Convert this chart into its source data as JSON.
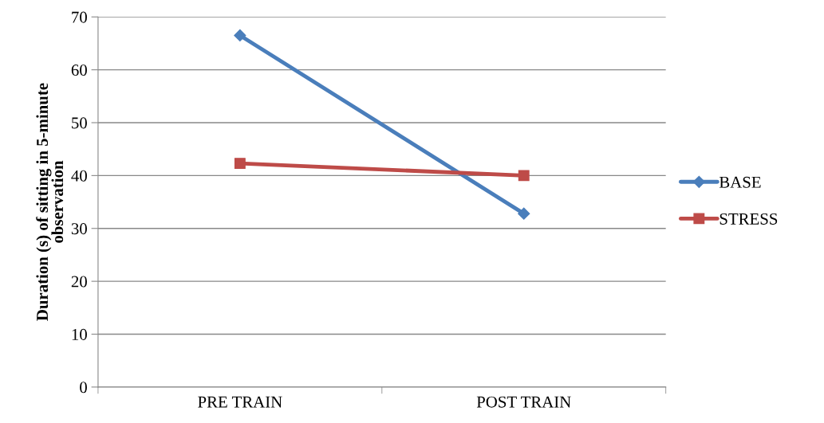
{
  "chart_data": {
    "type": "line",
    "ylabel": "Duration (s) of sitting in 5-minute\nobservation",
    "categories": [
      "PRE TRAIN",
      "POST TRAIN"
    ],
    "series": [
      {
        "name": "BASE",
        "color": "#4a7ebb",
        "marker": "diamond",
        "values": [
          66.5,
          32.8
        ]
      },
      {
        "name": "STRESS",
        "color": "#be4b48",
        "marker": "square",
        "values": [
          42.3,
          40.0
        ]
      }
    ],
    "ylim": [
      0,
      70
    ],
    "yticks": [
      0,
      10,
      20,
      30,
      40,
      50,
      60,
      70
    ],
    "grid": "y",
    "legend": "right",
    "line_style": "solid"
  }
}
